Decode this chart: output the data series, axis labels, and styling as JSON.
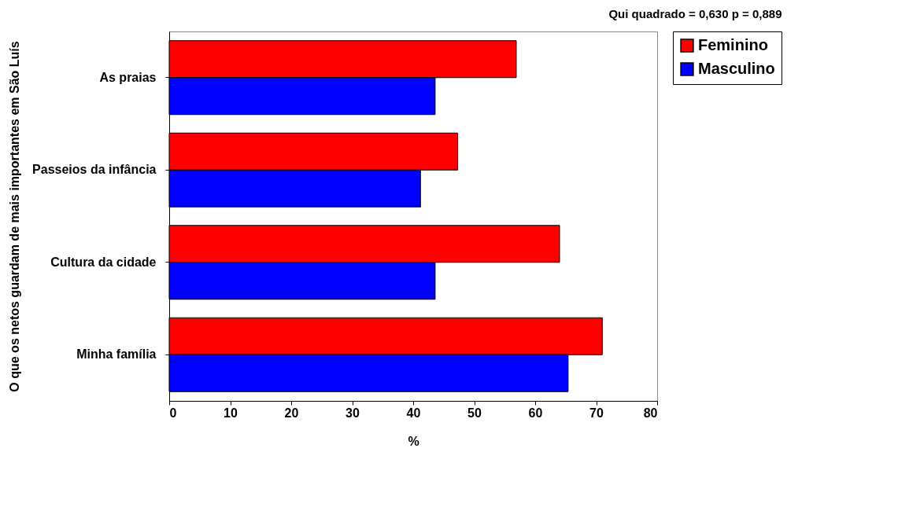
{
  "chart_data": {
    "type": "bar",
    "orientation": "horizontal",
    "annotations": [
      "Qui quadrado = 0,630    p = 0,889"
    ],
    "xlabel": "%",
    "ylabel": "O que os netos guardam de mais importantes em São Luís",
    "categories": [
      "As praias",
      "Passeios da infância",
      "Cultura da cidade",
      "Minha família"
    ],
    "series": [
      {
        "name": "Feminino",
        "color": "#ff0000",
        "values": [
          56.9,
          47.3,
          64.0,
          71.0
        ]
      },
      {
        "name": "Masculino",
        "color": "#0000ff",
        "values": [
          43.6,
          41.2,
          43.6,
          65.4
        ]
      }
    ],
    "xlim": [
      0,
      80
    ],
    "xticks": [
      0,
      10,
      20,
      30,
      40,
      50,
      60,
      70,
      80
    ],
    "grid": false,
    "legend": "right"
  }
}
